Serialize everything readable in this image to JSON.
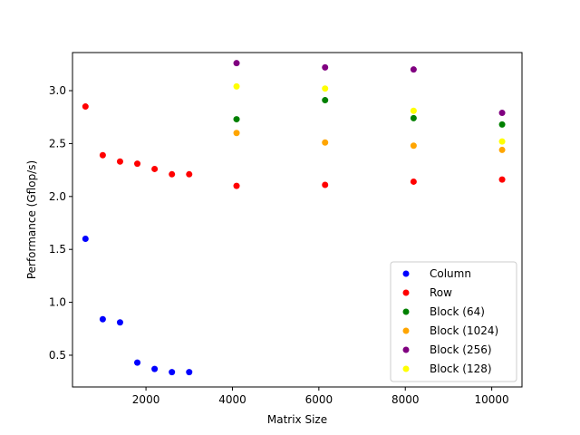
{
  "chart_data": {
    "type": "scatter",
    "title": "",
    "xlabel": "Matrix Size",
    "ylabel": "Performance (Gflop/s)",
    "xlim": [
      300,
      10700
    ],
    "ylim": [
      0.2,
      3.36
    ],
    "xticks": [
      2000,
      4000,
      6000,
      8000,
      10000
    ],
    "xtick_labels": [
      "2000",
      "4000",
      "6000",
      "8000",
      "10000"
    ],
    "yticks": [
      0.5,
      1.0,
      1.5,
      2.0,
      2.5,
      3.0
    ],
    "ytick_labels": [
      "0.5",
      "1.0",
      "1.5",
      "2.0",
      "2.5",
      "3.0"
    ],
    "grid": false,
    "legend_position": "bottom-right",
    "series": [
      {
        "name": "Column",
        "color": "#0000ff",
        "points": [
          [
            600,
            1.6
          ],
          [
            1000,
            0.84
          ],
          [
            1400,
            0.81
          ],
          [
            1800,
            0.43
          ],
          [
            2200,
            0.37
          ],
          [
            2600,
            0.34
          ],
          [
            3000,
            0.34
          ]
        ]
      },
      {
        "name": "Row",
        "color": "#ff0000",
        "points": [
          [
            600,
            2.85
          ],
          [
            1000,
            2.39
          ],
          [
            1400,
            2.33
          ],
          [
            1800,
            2.31
          ],
          [
            2200,
            2.26
          ],
          [
            2600,
            2.21
          ],
          [
            3000,
            2.21
          ],
          [
            4096,
            2.1
          ],
          [
            6144,
            2.11
          ],
          [
            8192,
            2.14
          ],
          [
            10240,
            2.16
          ]
        ]
      },
      {
        "name": "Block (64)",
        "color": "#008000",
        "points": [
          [
            4096,
            2.73
          ],
          [
            6144,
            2.91
          ],
          [
            8192,
            2.74
          ],
          [
            10240,
            2.68
          ]
        ]
      },
      {
        "name": "Block (1024)",
        "color": "#ffa500",
        "points": [
          [
            4096,
            2.6
          ],
          [
            6144,
            2.51
          ],
          [
            8192,
            2.48
          ],
          [
            10240,
            2.44
          ]
        ]
      },
      {
        "name": "Block (256)",
        "color": "#800080",
        "points": [
          [
            4096,
            3.26
          ],
          [
            6144,
            3.22
          ],
          [
            8192,
            3.2
          ],
          [
            10240,
            2.79
          ]
        ]
      },
      {
        "name": "Block (128)",
        "color": "#ffff00",
        "points": [
          [
            4096,
            3.04
          ],
          [
            6144,
            3.02
          ],
          [
            8192,
            2.81
          ],
          [
            10240,
            2.52
          ]
        ]
      }
    ]
  }
}
